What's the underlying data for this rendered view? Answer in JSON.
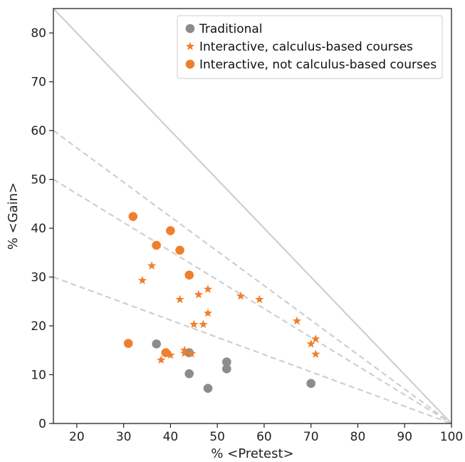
{
  "chart_data": {
    "type": "scatter",
    "title": "",
    "xlabel": "% <Pretest>",
    "ylabel": "% <Gain>",
    "xlim": [
      15,
      100
    ],
    "ylim": [
      0,
      85
    ],
    "xticks": [
      20,
      30,
      40,
      50,
      60,
      70,
      80,
      90,
      100
    ],
    "yticks": [
      0,
      10,
      20,
      30,
      40,
      50,
      60,
      70,
      80
    ],
    "grid": false,
    "legend_position": "top-right",
    "reference_lines": [
      {
        "style": "solid",
        "from": [
          15,
          85
        ],
        "to": [
          100,
          0
        ]
      },
      {
        "style": "dashed",
        "from": [
          15,
          60
        ],
        "to": [
          100,
          0
        ]
      },
      {
        "style": "dashed",
        "from": [
          15,
          50
        ],
        "to": [
          100,
          0
        ]
      },
      {
        "style": "dashed",
        "from": [
          15,
          30
        ],
        "to": [
          100,
          0
        ]
      }
    ],
    "series": [
      {
        "name": "Traditional",
        "marker": "circle",
        "color": "#8c8c8c",
        "points": [
          [
            37,
            16.3
          ],
          [
            44,
            14.5
          ],
          [
            44,
            10.2
          ],
          [
            48,
            7.2
          ],
          [
            52,
            12.6
          ],
          [
            52,
            11.2
          ],
          [
            70,
            8.2
          ]
        ]
      },
      {
        "name": "Interactive, calculus-based courses",
        "marker": "star",
        "color": "#ef7f2c",
        "points": [
          [
            34,
            29.3
          ],
          [
            36,
            32.3
          ],
          [
            38,
            13.0
          ],
          [
            40,
            14.0
          ],
          [
            42,
            25.4
          ],
          [
            43,
            14.4
          ],
          [
            43,
            15.0
          ],
          [
            44.5,
            14.3
          ],
          [
            45,
            20.3
          ],
          [
            46,
            26.4
          ],
          [
            47,
            20.3
          ],
          [
            48,
            27.5
          ],
          [
            48,
            22.6
          ],
          [
            55,
            26.1
          ],
          [
            59,
            25.4
          ],
          [
            67,
            21.0
          ],
          [
            70,
            16.3
          ],
          [
            71,
            17.3
          ],
          [
            71,
            14.2
          ]
        ]
      },
      {
        "name": "Interactive, not calculus-based courses",
        "marker": "circle",
        "color": "#ef7f2c",
        "points": [
          [
            31,
            16.4
          ],
          [
            32,
            42.4
          ],
          [
            37,
            36.5
          ],
          [
            39,
            14.5
          ],
          [
            40,
            39.5
          ],
          [
            42,
            35.5
          ],
          [
            44,
            30.4
          ]
        ]
      }
    ]
  }
}
